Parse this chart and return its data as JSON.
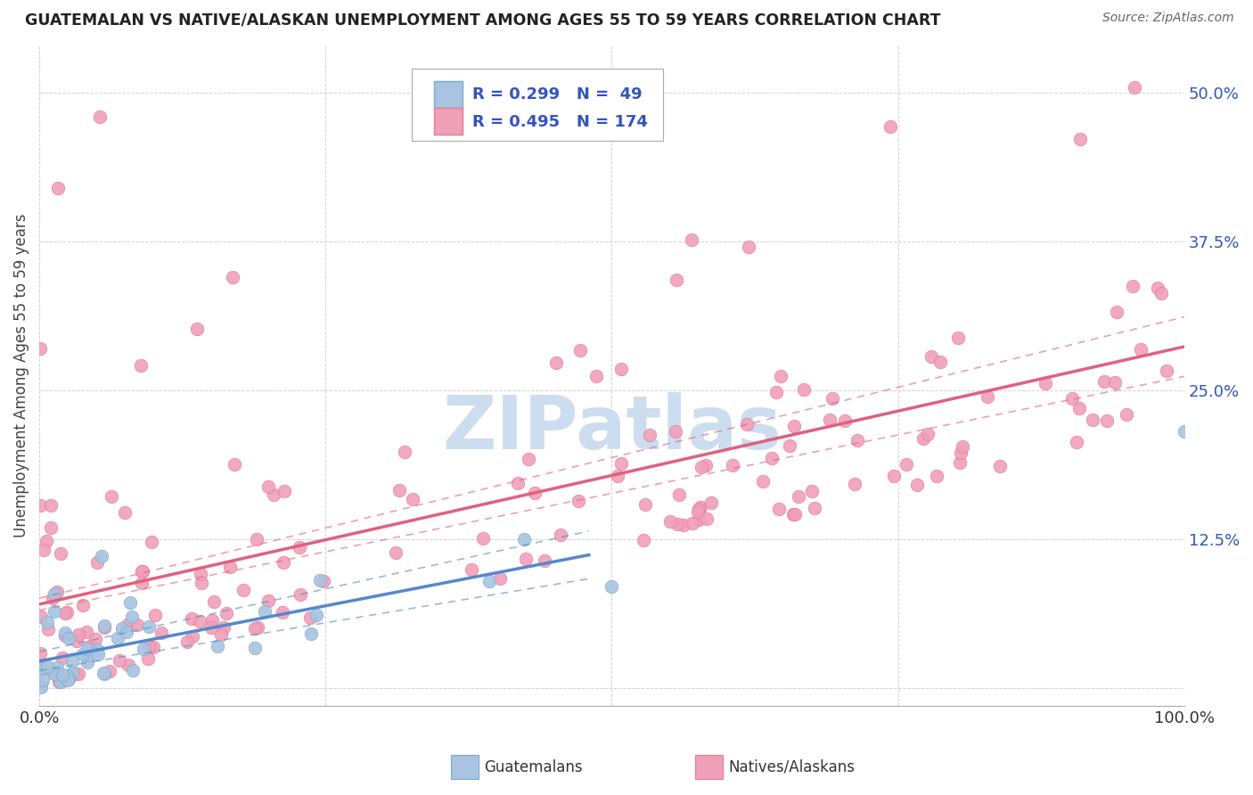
{
  "title": "GUATEMALAN VS NATIVE/ALASKAN UNEMPLOYMENT AMONG AGES 55 TO 59 YEARS CORRELATION CHART",
  "source": "Source: ZipAtlas.com",
  "ylabel": "Unemployment Among Ages 55 to 59 years",
  "yticks": [
    0.0,
    0.125,
    0.25,
    0.375,
    0.5
  ],
  "ytick_labels": [
    "",
    "12.5%",
    "25.0%",
    "37.5%",
    "50.0%"
  ],
  "xlim": [
    0.0,
    1.0
  ],
  "ylim": [
    -0.015,
    0.54
  ],
  "guatemalan_R": 0.299,
  "guatemalan_N": 49,
  "native_R": 0.495,
  "native_N": 174,
  "guatemalan_color": "#a8c4e0",
  "guatemalan_edge_color": "#7aaad0",
  "native_color": "#f0a0b8",
  "native_edge_color": "#e87898",
  "guatemalan_line_color": "#5588cc",
  "native_line_color": "#e06080",
  "legend_text_color": "#3355bb",
  "background_color": "#ffffff",
  "watermark_text": "ZIPatlas",
  "watermark_color": "#ccddf0",
  "grid_color": "#cccccc",
  "title_color": "#222222",
  "source_color": "#666666",
  "ylabel_color": "#444444",
  "xtick_color": "#333333",
  "ytick_color": "#3355bb"
}
